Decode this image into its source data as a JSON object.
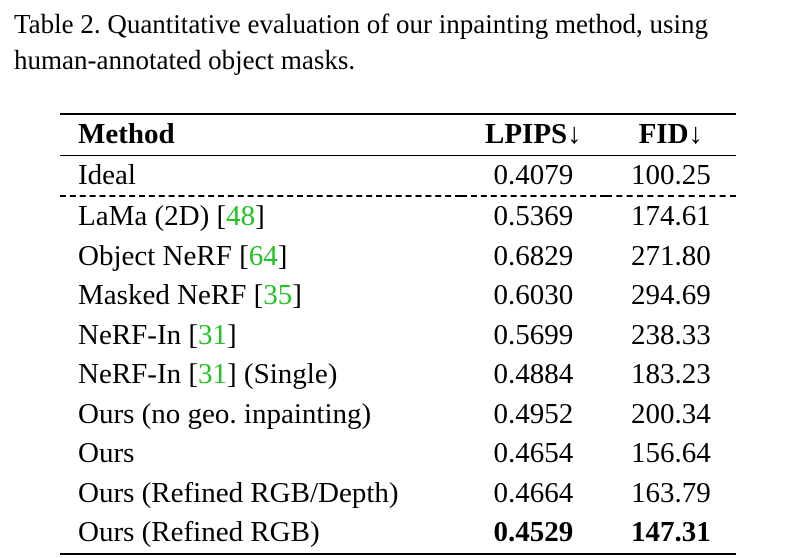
{
  "caption": {
    "line1": "Table 2.  Quantitative evaluation of our inpainting method, using",
    "line2": "human-annotated object masks."
  },
  "table": {
    "headers": {
      "method": "Method",
      "lpips": "LPIPS↓",
      "fid": "FID↓"
    },
    "rows": [
      {
        "name": "Ideal",
        "ref": "",
        "suffix": "",
        "lpips": "0.4079",
        "fid": "100.25"
      },
      {
        "name": "LaMa (2D) [",
        "ref": "48",
        "suffix": "]",
        "lpips": "0.5369",
        "fid": "174.61"
      },
      {
        "name": "Object NeRF [",
        "ref": "64",
        "suffix": "]",
        "lpips": "0.6829",
        "fid": "271.80"
      },
      {
        "name": "Masked NeRF [",
        "ref": "35",
        "suffix": "]",
        "lpips": "0.6030",
        "fid": "294.69"
      },
      {
        "name": "NeRF-In [",
        "ref": "31",
        "suffix": "]",
        "lpips": "0.5699",
        "fid": "238.33"
      },
      {
        "name": "NeRF-In [",
        "ref": "31",
        "suffix": "] (Single)",
        "lpips": "0.4884",
        "fid": "183.23"
      },
      {
        "name": "Ours (no geo. inpainting)",
        "ref": "",
        "suffix": "",
        "lpips": "0.4952",
        "fid": "200.34"
      },
      {
        "name": "Ours",
        "ref": "",
        "suffix": "",
        "lpips": "0.4654",
        "fid": "156.64"
      },
      {
        "name": "Ours (Refined RGB/Depth)",
        "ref": "",
        "suffix": "",
        "lpips": "0.4664",
        "fid": "163.79"
      },
      {
        "name": "Ours (Refined RGB)",
        "ref": "",
        "suffix": "",
        "lpips": "0.4529",
        "fid": "147.31"
      }
    ],
    "colors": {
      "reference_link": "#22c322",
      "text": "#000000"
    }
  }
}
